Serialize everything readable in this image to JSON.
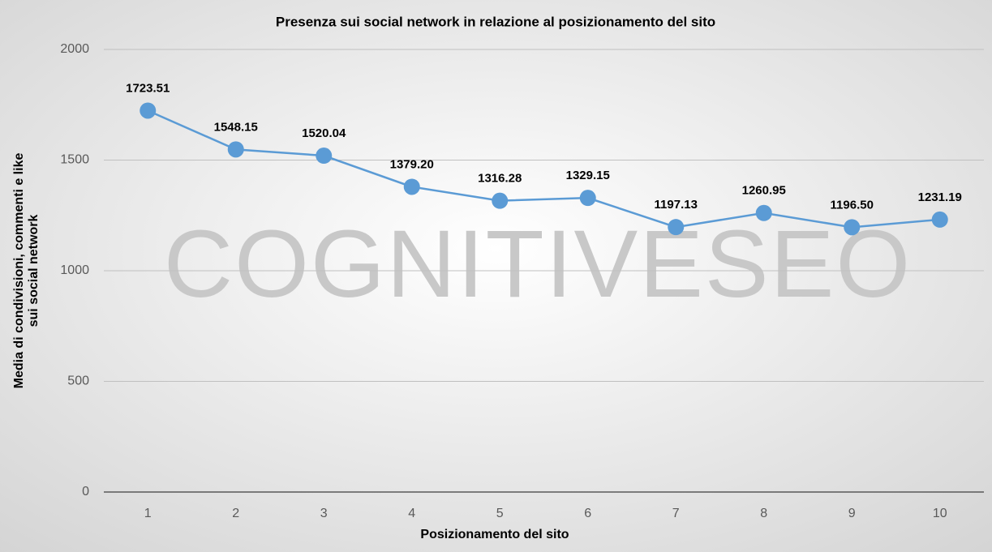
{
  "chart_data": {
    "type": "line",
    "title": "Presenza sui social network in relazione al posizionamento del sito",
    "watermark": "COGNITIVESEO",
    "x_label": "Posizionamento del sito",
    "y_label": [
      "Media di condivisioni, commenti e like",
      "sui social network"
    ],
    "categories": [
      "1",
      "2",
      "3",
      "4",
      "5",
      "6",
      "7",
      "8",
      "9",
      "10"
    ],
    "values": [
      1723.51,
      1548.15,
      1520.04,
      1379.2,
      1316.28,
      1329.15,
      1197.13,
      1260.95,
      1196.5,
      1231.19
    ],
    "value_labels": [
      "1723.51",
      "1548.15",
      "1520.04",
      "1379.20",
      "1316.28",
      "1329.15",
      "1197.13",
      "1260.95",
      "1196.50",
      "1231.19"
    ],
    "color": "#5b9bd5",
    "ylim": [
      0,
      2000
    ],
    "yticks": [
      0,
      500,
      1000,
      1500,
      2000
    ],
    "grid": true
  }
}
